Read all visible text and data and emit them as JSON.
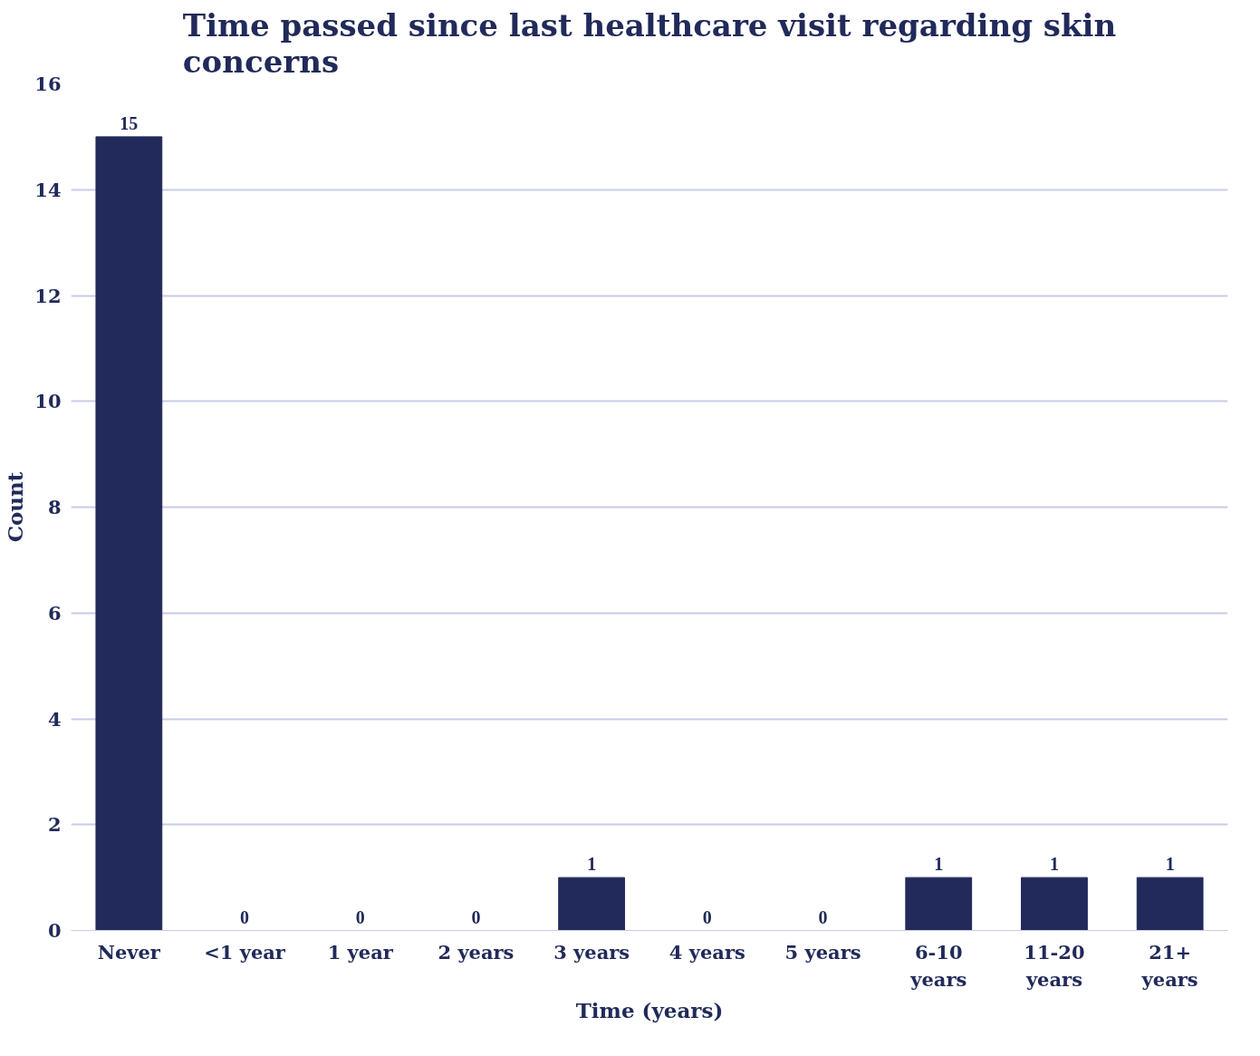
{
  "chart_data": {
    "type": "bar",
    "title": "Time passed since last healthcare visit regarding skin concerns",
    "xlabel": "Time (years)",
    "ylabel": "Count",
    "categories": [
      "Never",
      "<1 year",
      "1 year",
      "2 years",
      "3 years",
      "4 years",
      "5 years",
      "6-10 years",
      "11-20 years",
      "21+ years"
    ],
    "values": [
      15,
      0,
      0,
      0,
      1,
      0,
      0,
      1,
      1,
      1
    ],
    "color": "#212a5a",
    "ylim": [
      0,
      16
    ],
    "yticks": [
      0,
      2,
      4,
      6,
      8,
      10,
      12,
      14,
      16
    ],
    "grid": "y",
    "data_labels": true
  }
}
